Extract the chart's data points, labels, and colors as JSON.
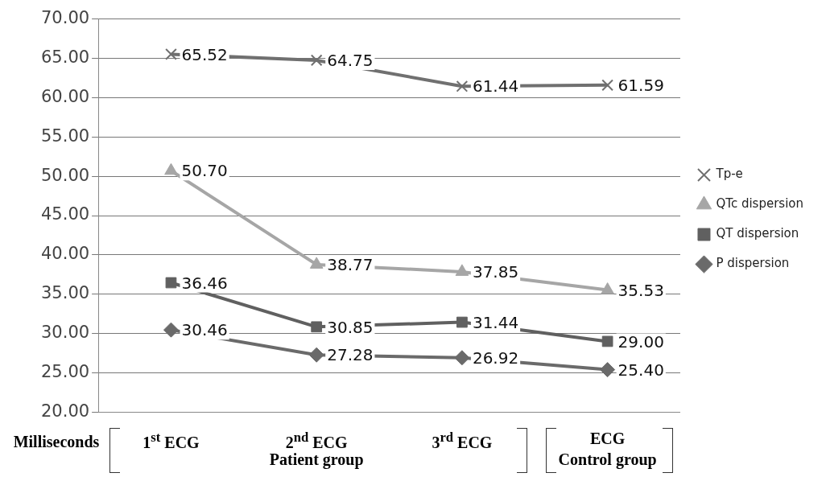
{
  "chart_data": {
    "type": "line",
    "ylabel": "Milliseconds",
    "categories": [
      "1$^{st}$ ECG",
      "2$^{nd}$ ECG",
      "3$^{rd}$ ECG",
      "ECG"
    ],
    "series": [
      {
        "name": "Tp-e",
        "color": "#707070",
        "marker": "cross",
        "values": [
          65.52,
          64.75,
          61.44,
          61.59
        ],
        "value_labels": [
          "65.52",
          "64.75",
          "61.44",
          "61.59"
        ]
      },
      {
        "name": "QTc dispersion",
        "color": "#a6a6a6",
        "marker": "triangle",
        "values": [
          50.7,
          38.77,
          37.85,
          35.53
        ],
        "value_labels": [
          "50.70",
          "38.77",
          "37.85",
          "35.53"
        ]
      },
      {
        "name": "QT dispersion",
        "color": "#606060",
        "marker": "square",
        "values": [
          36.46,
          30.85,
          31.44,
          29.0
        ],
        "value_labels": [
          "36.46",
          "30.85",
          "31.44",
          "29.00"
        ]
      },
      {
        "name": "P dispersion",
        "color": "#6a6a6a",
        "marker": "diamond",
        "values": [
          30.46,
          27.28,
          26.92,
          25.4
        ],
        "value_labels": [
          "30.46",
          "27.28",
          "26.92",
          "25.40"
        ]
      }
    ],
    "ylim": [
      20,
      70
    ],
    "yticks": [
      {
        "value": 20,
        "label": "20.00"
      },
      {
        "value": 25,
        "label": "25.00"
      },
      {
        "value": 30,
        "label": "30.00"
      },
      {
        "value": 35,
        "label": "35.00"
      },
      {
        "value": 40,
        "label": "40.00"
      },
      {
        "value": 45,
        "label": "45.00"
      },
      {
        "value": 50,
        "label": "50.00"
      },
      {
        "value": 55,
        "label": "55.00"
      },
      {
        "value": 60,
        "label": "60.00"
      },
      {
        "value": 65,
        "label": "65.00"
      },
      {
        "value": 70,
        "label": "70.00"
      }
    ],
    "grid": "y",
    "legend": "right",
    "line_style": "solid",
    "annotations": [
      "Patient group",
      "Control group"
    ]
  }
}
